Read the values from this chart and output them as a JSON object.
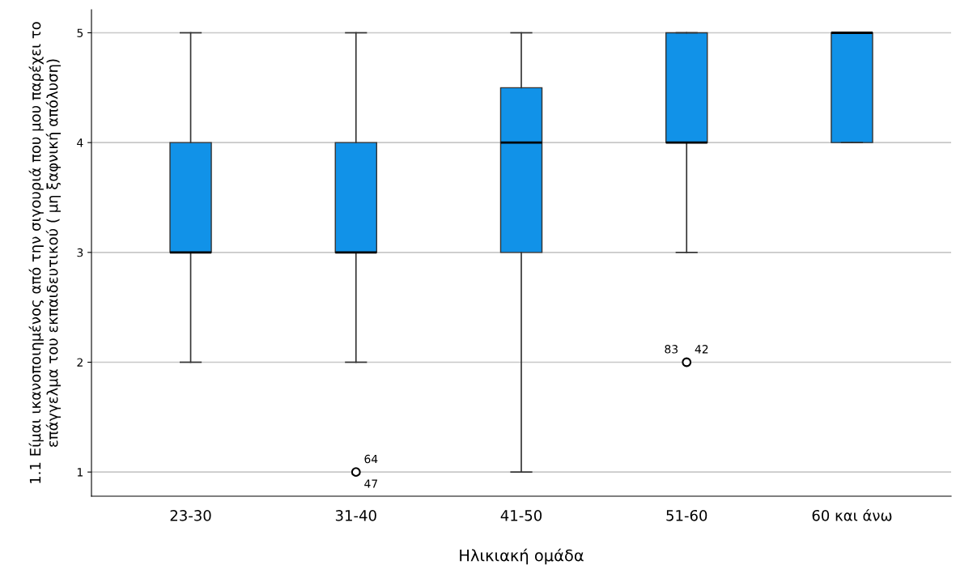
{
  "chart_data": {
    "type": "box",
    "xlabel": "Ηλικιακή ομάδα",
    "ylabel": "1.1 Είμαι ικανοποιημένος από την σιγουριά που μου παρέχει το επάγγελμα του εκπαιδευτικού ( μη ξαφνική απόλυση)",
    "categories": [
      "23-30",
      "31-40",
      "41-50",
      "51-60",
      "60 και άνω"
    ],
    "boxes": [
      {
        "low": 2,
        "q1": 3,
        "median": 3,
        "q3": 4,
        "high": 5
      },
      {
        "low": 2,
        "q1": 3,
        "median": 3,
        "q3": 4,
        "high": 5,
        "outliers": [
          1
        ]
      },
      {
        "low": 1,
        "q1": 3,
        "median": 4,
        "q3": 4.5,
        "high": 5
      },
      {
        "low": 3,
        "q1": 4,
        "median": 4,
        "q3": 5,
        "high": 5,
        "outliers": [
          2
        ]
      },
      {
        "low": 4,
        "q1": 4,
        "median": 5,
        "q3": 5,
        "high": 5
      }
    ],
    "color": "#1192e8",
    "ylim": [
      0.78,
      5.21
    ],
    "yticks": [
      1,
      2,
      3,
      4,
      5
    ],
    "grid": "y",
    "annotations": [
      "64",
      "47",
      "83",
      "42"
    ]
  }
}
